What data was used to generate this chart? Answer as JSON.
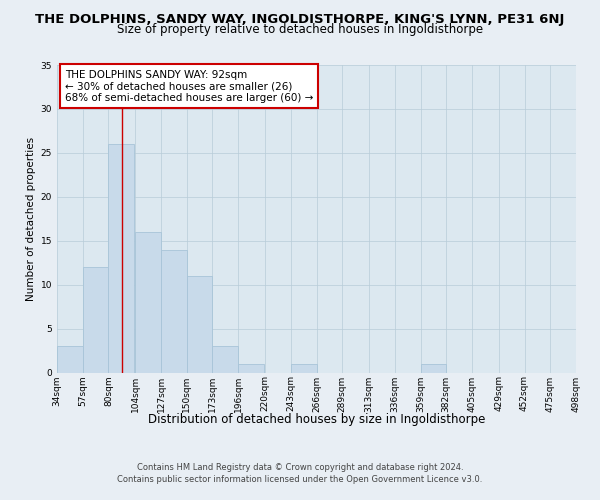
{
  "title": "THE DOLPHINS, SANDY WAY, INGOLDISTHORPE, KING'S LYNN, PE31 6NJ",
  "subtitle": "Size of property relative to detached houses in Ingoldisthorpe",
  "xlabel": "Distribution of detached houses by size in Ingoldisthorpe",
  "ylabel": "Number of detached properties",
  "bar_color": "#c8daea",
  "bar_edge_color": "#a8c4d8",
  "annotation_line_color": "#cc0000",
  "annotation_box_edge_color": "#cc0000",
  "annotation_text": [
    "THE DOLPHINS SANDY WAY: 92sqm",
    "← 30% of detached houses are smaller (26)",
    "68% of semi-detached houses are larger (60) →"
  ],
  "bins": [
    34,
    57,
    80,
    104,
    127,
    150,
    173,
    196,
    220,
    243,
    266,
    289,
    313,
    336,
    359,
    382,
    405,
    429,
    452,
    475,
    498
  ],
  "counts": [
    3,
    12,
    26,
    16,
    14,
    11,
    3,
    1,
    0,
    1,
    0,
    0,
    0,
    0,
    1,
    0,
    0,
    0,
    0,
    0
  ],
  "property_value_sqm": 92,
  "ylim": [
    0,
    35
  ],
  "yticks": [
    0,
    5,
    10,
    15,
    20,
    25,
    30,
    35
  ],
  "footer_text": "Contains HM Land Registry data © Crown copyright and database right 2024.\nContains public sector information licensed under the Open Government Licence v3.0.",
  "background_color": "#e8eef4",
  "plot_background_color": "#dce8f0",
  "grid_color": "#b8ccd8",
  "title_fontsize": 9.5,
  "subtitle_fontsize": 8.5,
  "xlabel_fontsize": 8.5,
  "ylabel_fontsize": 7.5,
  "tick_fontsize": 6.5,
  "annotation_fontsize": 7.5,
  "footer_fontsize": 6.0
}
